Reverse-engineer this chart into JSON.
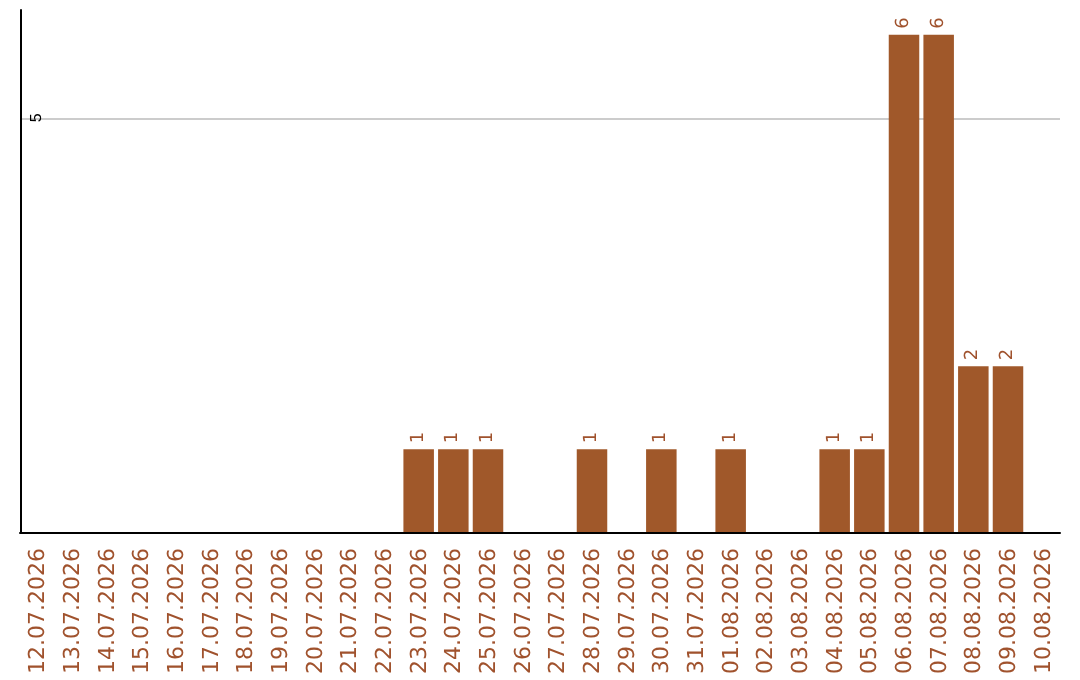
{
  "chart_data": {
    "type": "bar",
    "categories": [
      "12.07.2026",
      "13.07.2026",
      "14.07.2026",
      "15.07.2026",
      "16.07.2026",
      "17.07.2026",
      "18.07.2026",
      "19.07.2026",
      "20.07.2026",
      "21.07.2026",
      "22.07.2026",
      "23.07.2026",
      "24.07.2026",
      "25.07.2026",
      "26.07.2026",
      "27.07.2026",
      "28.07.2026",
      "29.07.2026",
      "30.07.2026",
      "31.07.2026",
      "01.08.2026",
      "02.08.2026",
      "03.08.2026",
      "04.08.2026",
      "05.08.2026",
      "06.08.2026",
      "07.08.2026",
      "08.08.2026",
      "09.08.2026",
      "10.08.2026"
    ],
    "values": [
      0,
      0,
      0,
      0,
      0,
      0,
      0,
      0,
      0,
      0,
      0,
      1,
      1,
      1,
      0,
      0,
      1,
      0,
      1,
      0,
      1,
      0,
      0,
      1,
      1,
      6,
      6,
      2,
      2,
      0
    ],
    "value_labels": [
      null,
      null,
      null,
      null,
      null,
      null,
      null,
      null,
      null,
      null,
      null,
      "1",
      "1",
      "1",
      null,
      null,
      "1",
      null,
      "1",
      null,
      "1",
      null,
      null,
      "1",
      "1",
      "6",
      "6",
      "2",
      "2",
      null
    ],
    "color": "#a0582a",
    "ylim": [
      0,
      6.3
    ],
    "yticks": [
      5
    ],
    "grid": "y"
  }
}
